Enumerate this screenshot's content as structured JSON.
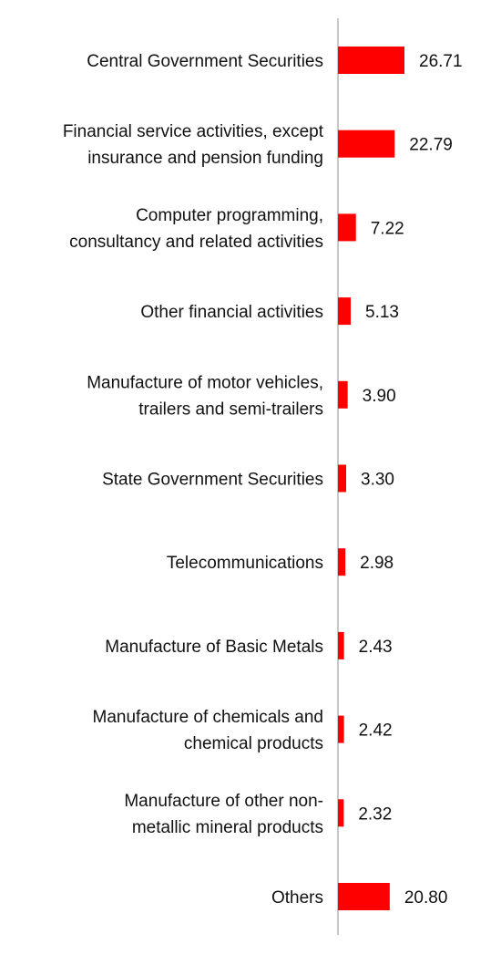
{
  "chart_data": {
    "type": "bar",
    "orientation": "horizontal",
    "title": "",
    "xlabel": "",
    "ylabel": "",
    "grid": false,
    "legend": "none",
    "bar_color": "#ff0000",
    "axis_color": "#c8c8c8",
    "xlim": [
      0,
      30
    ],
    "categories": [
      [
        "Central Government Securities"
      ],
      [
        "Financial service activities, except",
        "insurance and pension funding"
      ],
      [
        "Computer programming,",
        "consultancy and related activities"
      ],
      [
        "Other financial activities"
      ],
      [
        "Manufacture of motor vehicles,",
        "trailers and semi-trailers"
      ],
      [
        "State Government Securities"
      ],
      [
        "Telecommunications"
      ],
      [
        "Manufacture of Basic Metals"
      ],
      [
        "Manufacture of chemicals and",
        "chemical products"
      ],
      [
        "Manufacture of other non-",
        "metallic mineral products"
      ],
      [
        "Others"
      ]
    ],
    "values": [
      26.71,
      22.79,
      7.22,
      5.13,
      3.9,
      3.3,
      2.98,
      2.43,
      2.42,
      2.32,
      20.8
    ],
    "value_labels": [
      "26.71",
      "22.79",
      "7.22",
      "5.13",
      "3.90",
      "3.30",
      "2.98",
      "2.43",
      "2.42",
      "2.32",
      "20.80"
    ]
  }
}
